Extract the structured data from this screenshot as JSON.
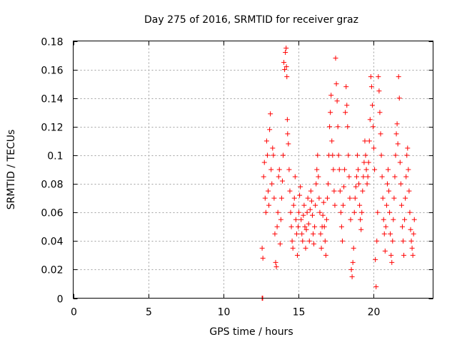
{
  "chart_data": {
    "type": "scatter",
    "title": "Day 275 of 2016, SRMTID for receiver graz",
    "xlabel": "GPS time / hours",
    "ylabel": "SRMTID / TECUs",
    "xlim": [
      0,
      24
    ],
    "ylim": [
      0,
      0.18
    ],
    "xticks": [
      0,
      5,
      10,
      15,
      20
    ],
    "xtick_labels": [
      "0",
      "5",
      "10",
      "15",
      "20"
    ],
    "yticks": [
      0,
      0.02,
      0.04,
      0.06,
      0.08,
      0.1,
      0.12,
      0.14,
      0.16,
      0.18
    ],
    "ytick_labels": [
      "0",
      "0.02",
      "0.04",
      "0.06",
      "0.08",
      "0.1",
      "0.12",
      "0.14",
      "0.16",
      "0.18"
    ],
    "grid": true,
    "marker": "+",
    "color": "#ff0000",
    "series": [
      {
        "name": "SRMTID",
        "points": [
          [
            12.6,
            0.0
          ],
          [
            12.62,
            0.0
          ],
          [
            12.64,
            0.0
          ],
          [
            12.6,
            0.035
          ],
          [
            12.65,
            0.028
          ],
          [
            12.7,
            0.085
          ],
          [
            12.75,
            0.095
          ],
          [
            12.8,
            0.07
          ],
          [
            12.85,
            0.06
          ],
          [
            12.9,
            0.11
          ],
          [
            12.95,
            0.1
          ],
          [
            13.0,
            0.075
          ],
          [
            13.05,
            0.065
          ],
          [
            13.1,
            0.118
          ],
          [
            13.15,
            0.129
          ],
          [
            13.2,
            0.09
          ],
          [
            13.25,
            0.08
          ],
          [
            13.3,
            0.105
          ],
          [
            13.35,
            0.1
          ],
          [
            13.4,
            0.07
          ],
          [
            13.45,
            0.045
          ],
          [
            13.5,
            0.025
          ],
          [
            13.55,
            0.022
          ],
          [
            13.6,
            0.05
          ],
          [
            13.65,
            0.06
          ],
          [
            13.7,
            0.085
          ],
          [
            13.75,
            0.09
          ],
          [
            13.8,
            0.038
          ],
          [
            13.85,
            0.055
          ],
          [
            13.9,
            0.07
          ],
          [
            13.95,
            0.082
          ],
          [
            14.0,
            0.1
          ],
          [
            14.05,
            0.165
          ],
          [
            14.1,
            0.16
          ],
          [
            14.15,
            0.172
          ],
          [
            14.2,
            0.175
          ],
          [
            14.22,
            0.162
          ],
          [
            14.25,
            0.155
          ],
          [
            14.28,
            0.125
          ],
          [
            14.3,
            0.115
          ],
          [
            14.35,
            0.108
          ],
          [
            14.4,
            0.09
          ],
          [
            14.45,
            0.075
          ],
          [
            14.5,
            0.06
          ],
          [
            14.55,
            0.05
          ],
          [
            14.6,
            0.04
          ],
          [
            14.65,
            0.035
          ],
          [
            14.7,
            0.065
          ],
          [
            14.75,
            0.07
          ],
          [
            14.8,
            0.085
          ],
          [
            14.85,
            0.055
          ],
          [
            14.9,
            0.045
          ],
          [
            14.95,
            0.03
          ],
          [
            15.0,
            0.05
          ],
          [
            15.05,
            0.06
          ],
          [
            15.1,
            0.072
          ],
          [
            15.15,
            0.078
          ],
          [
            15.2,
            0.055
          ],
          [
            15.25,
            0.045
          ],
          [
            15.3,
            0.04
          ],
          [
            15.35,
            0.058
          ],
          [
            15.4,
            0.065
          ],
          [
            15.45,
            0.05
          ],
          [
            15.5,
            0.035
          ],
          [
            15.55,
            0.048
          ],
          [
            15.6,
            0.06
          ],
          [
            15.65,
            0.07
          ],
          [
            15.7,
            0.052
          ],
          [
            15.75,
            0.04
          ],
          [
            15.8,
            0.062
          ],
          [
            15.85,
            0.075
          ],
          [
            15.9,
            0.068
          ],
          [
            15.95,
            0.058
          ],
          [
            16.0,
            0.045
          ],
          [
            16.05,
            0.038
          ],
          [
            16.1,
            0.05
          ],
          [
            16.15,
            0.065
          ],
          [
            16.2,
            0.08
          ],
          [
            16.25,
            0.09
          ],
          [
            16.3,
            0.1
          ],
          [
            16.35,
            0.085
          ],
          [
            16.4,
            0.07
          ],
          [
            16.45,
            0.06
          ],
          [
            16.5,
            0.045
          ],
          [
            16.55,
            0.035
          ],
          [
            16.6,
            0.05
          ],
          [
            16.65,
            0.058
          ],
          [
            16.7,
            0.067
          ],
          [
            16.75,
            0.05
          ],
          [
            16.8,
            0.04
          ],
          [
            16.85,
            0.03
          ],
          [
            16.9,
            0.055
          ],
          [
            16.95,
            0.07
          ],
          [
            17.0,
            0.08
          ],
          [
            17.05,
            0.1
          ],
          [
            17.1,
            0.12
          ],
          [
            17.15,
            0.13
          ],
          [
            17.2,
            0.142
          ],
          [
            17.25,
            0.11
          ],
          [
            17.3,
            0.1
          ],
          [
            17.35,
            0.09
          ],
          [
            17.4,
            0.075
          ],
          [
            17.45,
            0.065
          ],
          [
            17.5,
            0.168
          ],
          [
            17.55,
            0.15
          ],
          [
            17.6,
            0.138
          ],
          [
            17.65,
            0.12
          ],
          [
            17.7,
            0.1
          ],
          [
            17.75,
            0.09
          ],
          [
            17.8,
            0.075
          ],
          [
            17.85,
            0.06
          ],
          [
            17.9,
            0.05
          ],
          [
            17.95,
            0.04
          ],
          [
            18.0,
            0.065
          ],
          [
            18.05,
            0.078
          ],
          [
            18.1,
            0.09
          ],
          [
            18.15,
            0.13
          ],
          [
            18.2,
            0.148
          ],
          [
            18.25,
            0.135
          ],
          [
            18.3,
            0.12
          ],
          [
            18.35,
            0.1
          ],
          [
            18.4,
            0.085
          ],
          [
            18.45,
            0.07
          ],
          [
            18.5,
            0.055
          ],
          [
            18.55,
            0.02
          ],
          [
            18.6,
            0.015
          ],
          [
            18.65,
            0.025
          ],
          [
            18.7,
            0.035
          ],
          [
            18.75,
            0.06
          ],
          [
            18.8,
            0.07
          ],
          [
            18.85,
            0.078
          ],
          [
            18.9,
            0.085
          ],
          [
            18.95,
            0.1
          ],
          [
            19.0,
            0.09
          ],
          [
            19.05,
            0.08
          ],
          [
            19.1,
            0.065
          ],
          [
            19.15,
            0.055
          ],
          [
            19.2,
            0.048
          ],
          [
            19.25,
            0.06
          ],
          [
            19.3,
            0.075
          ],
          [
            19.35,
            0.085
          ],
          [
            19.4,
            0.095
          ],
          [
            19.45,
            0.11
          ],
          [
            19.5,
            0.1
          ],
          [
            19.55,
            0.09
          ],
          [
            19.6,
            0.08
          ],
          [
            19.65,
            0.085
          ],
          [
            19.7,
            0.095
          ],
          [
            19.75,
            0.11
          ],
          [
            19.8,
            0.125
          ],
          [
            19.85,
            0.155
          ],
          [
            19.9,
            0.148
          ],
          [
            19.95,
            0.135
          ],
          [
            20.0,
            0.12
          ],
          [
            20.05,
            0.105
          ],
          [
            20.1,
            0.09
          ],
          [
            20.15,
            0.027
          ],
          [
            20.2,
            0.008
          ],
          [
            20.25,
            0.04
          ],
          [
            20.3,
            0.06
          ],
          [
            20.35,
            0.155
          ],
          [
            20.4,
            0.145
          ],
          [
            20.45,
            0.13
          ],
          [
            20.5,
            0.115
          ],
          [
            20.55,
            0.1
          ],
          [
            20.6,
            0.085
          ],
          [
            20.65,
            0.07
          ],
          [
            20.7,
            0.055
          ],
          [
            20.75,
            0.045
          ],
          [
            20.8,
            0.033
          ],
          [
            20.85,
            0.05
          ],
          [
            20.9,
            0.065
          ],
          [
            20.95,
            0.08
          ],
          [
            21.0,
            0.09
          ],
          [
            21.05,
            0.075
          ],
          [
            21.1,
            0.06
          ],
          [
            21.15,
            0.045
          ],
          [
            21.2,
            0.03
          ],
          [
            21.25,
            0.025
          ],
          [
            21.3,
            0.04
          ],
          [
            21.35,
            0.055
          ],
          [
            21.4,
            0.07
          ],
          [
            21.45,
            0.085
          ],
          [
            21.5,
            0.1
          ],
          [
            21.55,
            0.115
          ],
          [
            21.6,
            0.122
          ],
          [
            21.65,
            0.108
          ],
          [
            21.7,
            0.155
          ],
          [
            21.75,
            0.14
          ],
          [
            21.8,
            0.095
          ],
          [
            21.85,
            0.08
          ],
          [
            21.9,
            0.065
          ],
          [
            21.95,
            0.05
          ],
          [
            22.0,
            0.04
          ],
          [
            22.05,
            0.03
          ],
          [
            22.1,
            0.055
          ],
          [
            22.15,
            0.07
          ],
          [
            22.2,
            0.085
          ],
          [
            22.25,
            0.1
          ],
          [
            22.3,
            0.105
          ],
          [
            22.35,
            0.09
          ],
          [
            22.4,
            0.075
          ],
          [
            22.45,
            0.06
          ],
          [
            22.5,
            0.048
          ],
          [
            22.55,
            0.04
          ],
          [
            22.6,
            0.035
          ],
          [
            22.65,
            0.03
          ],
          [
            22.7,
            0.045
          ],
          [
            22.75,
            0.055
          ]
        ]
      }
    ]
  }
}
